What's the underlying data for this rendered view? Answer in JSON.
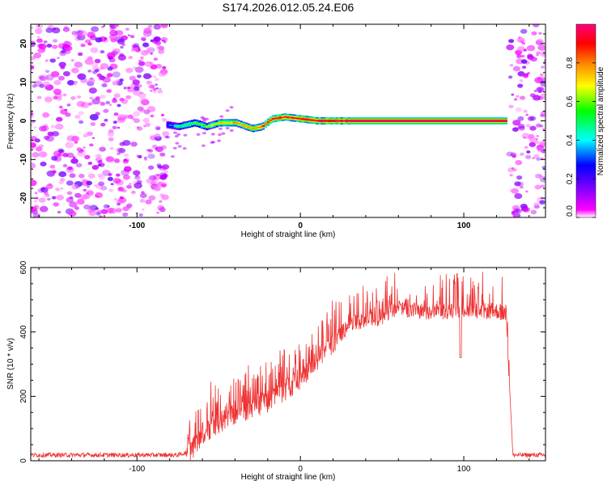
{
  "title": "S174.2026.012.05.24.E06",
  "chart_data": [
    {
      "type": "heatmap",
      "name": "spectrogram",
      "xlabel": "Height of straight line (km)",
      "ylabel": "Frequency (Hz)",
      "xlim": [
        -165,
        150
      ],
      "ylim": [
        -25,
        25
      ],
      "xticks": [
        -100,
        0,
        100
      ],
      "yticks": [
        -20,
        -10,
        0,
        10,
        20
      ],
      "colorbar": {
        "label": "Normalized spectral amplitude",
        "range": [
          0,
          1
        ],
        "ticks": [
          "0.0",
          "0.2",
          "0.4",
          "0.6",
          "0.8"
        ],
        "stops": [
          "#ffffff",
          "#ff00ff",
          "#8000ff",
          "#0000ff",
          "#00ffff",
          "#00ff00",
          "#ffff00",
          "#ff8000",
          "#ff0000",
          "#ff0080"
        ]
      },
      "track": {
        "x": [
          -82,
          -75,
          -65,
          -58,
          -50,
          -40,
          -30,
          -24,
          -18,
          -10,
          0,
          10,
          20,
          30,
          126
        ],
        "freq": [
          -1,
          -1.5,
          -0.5,
          -1.5,
          -0.5,
          -0.5,
          -2,
          -1.5,
          0.5,
          1,
          0.5,
          0,
          0,
          0,
          0
        ],
        "amplitude": [
          0.3,
          0.5,
          0.55,
          0.6,
          0.7,
          0.75,
          0.8,
          0.85,
          0.9,
          0.9,
          0.95,
          0.95,
          0.97,
          1.0,
          1.0
        ]
      },
      "noise_regions": [
        [
          -165,
          -82
        ],
        [
          128,
          150
        ]
      ]
    },
    {
      "type": "line",
      "name": "snr",
      "xlabel": "Height of straight line (km)",
      "ylabel": "SNR (10 * v/v)",
      "xlim": [
        -165,
        150
      ],
      "ylim": [
        0,
        600
      ],
      "xticks": [
        -100,
        0,
        100
      ],
      "yticks": [
        0,
        200,
        400,
        600
      ],
      "color": "#ee3333",
      "envelope": {
        "x": [
          -165,
          -75,
          -68,
          -60,
          -50,
          -40,
          -30,
          -20,
          -10,
          0,
          10,
          20,
          30,
          50,
          60,
          70,
          80,
          90,
          100,
          110,
          120,
          126,
          130,
          150
        ],
        "y": [
          15,
          15,
          25,
          90,
          120,
          150,
          170,
          190,
          220,
          260,
          310,
          370,
          430,
          450,
          480,
          470,
          460,
          470,
          475,
          470,
          470,
          460,
          15,
          15
        ]
      }
    }
  ]
}
